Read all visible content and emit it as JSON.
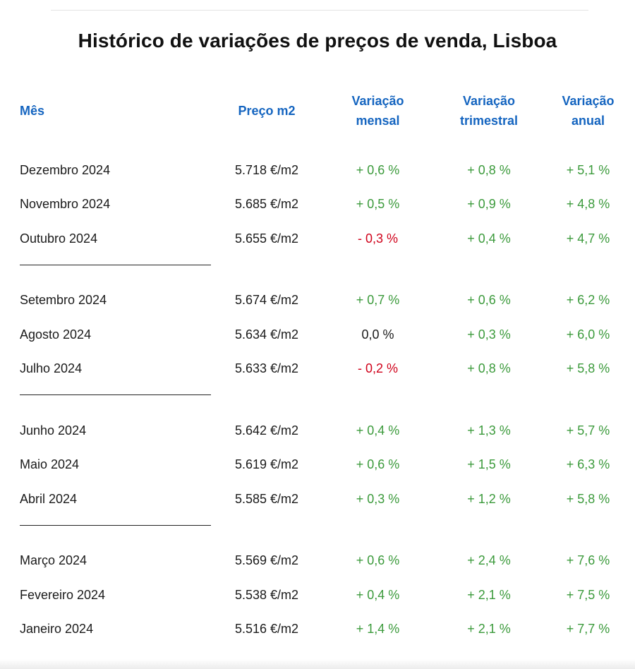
{
  "title": "Histórico de variações de preços de venda, Lisboa",
  "headers": {
    "mes": "Mês",
    "preco": "Preço m2",
    "mensal": [
      "Variação",
      "mensal"
    ],
    "trimestral": [
      "Variação",
      "trimestral"
    ],
    "anual": [
      "Variação",
      "anual"
    ]
  },
  "colors": {
    "header": "#1565c0",
    "positive": "#3b9a3b",
    "negative": "#d0021b",
    "neutral": "#1a1a1a"
  },
  "quarters": [
    [
      {
        "mes": "Dezembro 2024",
        "preco": "5.718 €/m2",
        "mensal": "+ 0,6 %",
        "trimestral": "+ 0,8 %",
        "anual": "+ 5,1 %"
      },
      {
        "mes": "Novembro 2024",
        "preco": "5.685 €/m2",
        "mensal": "+ 0,5 %",
        "trimestral": "+ 0,9 %",
        "anual": "+ 4,8 %"
      },
      {
        "mes": "Outubro 2024",
        "preco": "5.655 €/m2",
        "mensal": "- 0,3 %",
        "trimestral": "+ 0,4 %",
        "anual": "+ 4,7 %"
      }
    ],
    [
      {
        "mes": "Setembro 2024",
        "preco": "5.674 €/m2",
        "mensal": "+ 0,7 %",
        "trimestral": "+ 0,6 %",
        "anual": "+ 6,2 %"
      },
      {
        "mes": "Agosto 2024",
        "preco": "5.634 €/m2",
        "mensal": "0,0 %",
        "trimestral": "+ 0,3 %",
        "anual": "+ 6,0 %"
      },
      {
        "mes": "Julho 2024",
        "preco": "5.633 €/m2",
        "mensal": "- 0,2 %",
        "trimestral": "+ 0,8 %",
        "anual": "+ 5,8 %"
      }
    ],
    [
      {
        "mes": "Junho 2024",
        "preco": "5.642 €/m2",
        "mensal": "+ 0,4 %",
        "trimestral": "+ 1,3 %",
        "anual": "+ 5,7 %"
      },
      {
        "mes": "Maio 2024",
        "preco": "5.619 €/m2",
        "mensal": "+ 0,6 %",
        "trimestral": "+ 1,5 %",
        "anual": "+ 6,3 %"
      },
      {
        "mes": "Abril 2024",
        "preco": "5.585 €/m2",
        "mensal": "+ 0,3 %",
        "trimestral": "+ 1,2 %",
        "anual": "+ 5,8 %"
      }
    ],
    [
      {
        "mes": "Março 2024",
        "preco": "5.569 €/m2",
        "mensal": "+ 0,6 %",
        "trimestral": "+ 2,4 %",
        "anual": "+ 7,6 %"
      },
      {
        "mes": "Fevereiro 2024",
        "preco": "5.538 €/m2",
        "mensal": "+ 0,4 %",
        "trimestral": "+ 2,1 %",
        "anual": "+ 7,5 %"
      },
      {
        "mes": "Janeiro 2024",
        "preco": "5.516 €/m2",
        "mensal": "+ 1,4 %",
        "trimestral": "+ 2,1 %",
        "anual": "+ 7,7 %"
      }
    ]
  ]
}
